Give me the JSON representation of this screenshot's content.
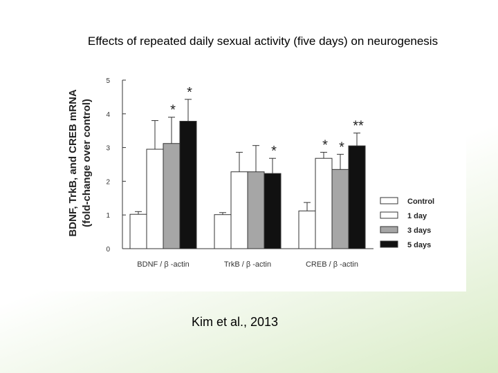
{
  "slide": {
    "title": "Effects of repeated daily sexual activity (five days) on neurogenesis",
    "citation": "Kim et al., 2013"
  },
  "chart_data": {
    "type": "bar",
    "ylabel_line1": "BDNF, TrkB, and CREB mRNA",
    "ylabel_line2": "(fold-change over control)",
    "ylim": [
      0,
      5
    ],
    "yticks": [
      "0",
      "1",
      "2",
      "3",
      "4",
      "5"
    ],
    "categories": [
      "BDNF / β -actin",
      "TrkB / β -actin",
      "CREB / β -actin"
    ],
    "legend_position": "right",
    "grid": false,
    "series": [
      {
        "name": "Control",
        "color": "#ffffff",
        "values": [
          1.02,
          1.01,
          1.12
        ],
        "errors": [
          0.08,
          0.06,
          0.25
        ],
        "sig": [
          "",
          "",
          ""
        ]
      },
      {
        "name": "1 day",
        "color": "#ffffff",
        "values": [
          2.95,
          2.28,
          2.68
        ],
        "errors": [
          0.85,
          0.58,
          0.18
        ],
        "sig": [
          "",
          "",
          "*"
        ]
      },
      {
        "name": "3 days",
        "color": "#a6a6a6",
        "values": [
          3.12,
          2.28,
          2.35
        ],
        "errors": [
          0.78,
          0.78,
          0.45
        ],
        "sig": [
          "*",
          "",
          "*"
        ]
      },
      {
        "name": "5 days",
        "color": "#111111",
        "values": [
          3.78,
          2.23,
          3.05
        ],
        "errors": [
          0.65,
          0.45,
          0.38
        ],
        "sig": [
          "*",
          "*",
          "**"
        ]
      }
    ]
  }
}
